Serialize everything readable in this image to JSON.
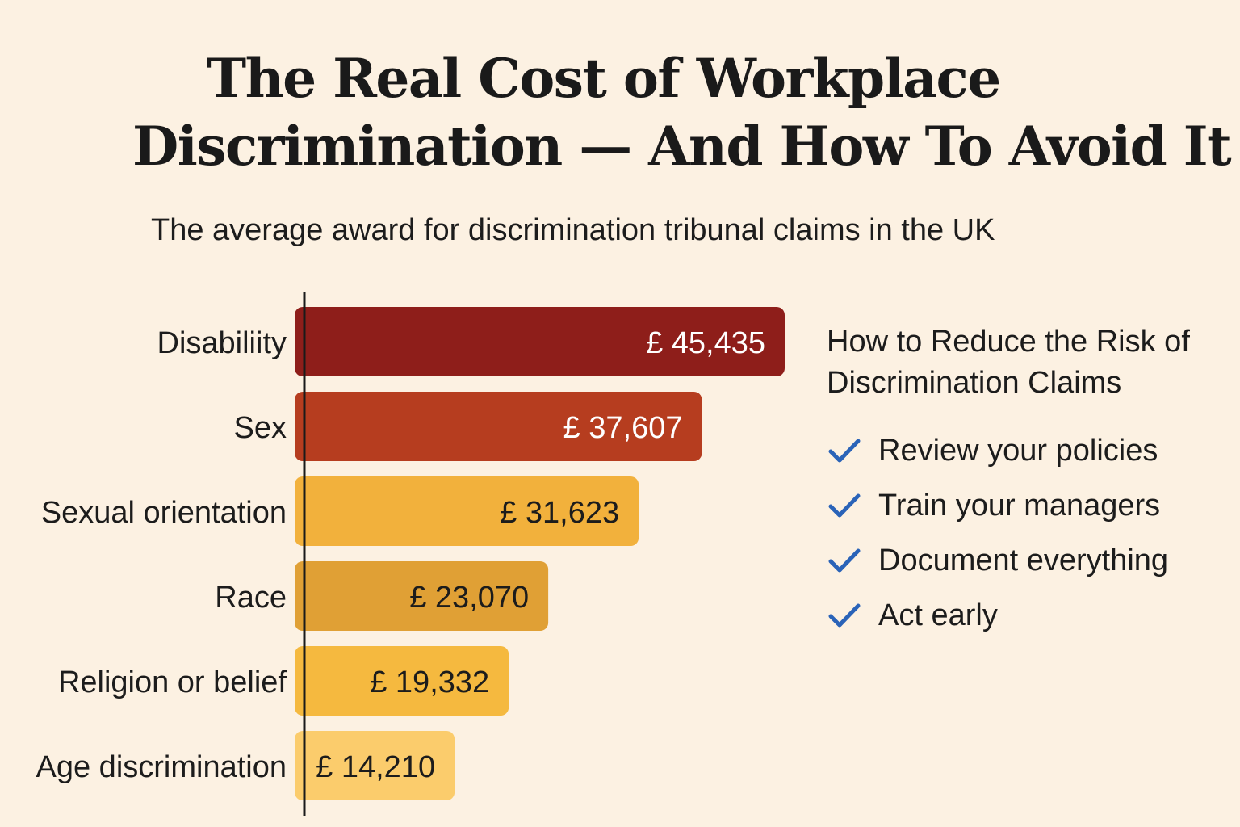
{
  "title": {
    "line1": "The Real Cost of Workplace",
    "line2": "Discrimination — And How To Avoid It"
  },
  "subtitle": "The average award for discrimination tribunal claims in the UK",
  "chart_data": {
    "type": "bar",
    "orientation": "horizontal",
    "categories": [
      "Disabiliity",
      "Sex",
      "Sexual orientation",
      "Race",
      "Religion or belief",
      "Age discrimination"
    ],
    "values": [
      45435,
      37607,
      31623,
      23070,
      19332,
      14210
    ],
    "value_labels": [
      "£ 45,435",
      "£ 37,607",
      "£ 31,623",
      "£ 23,070",
      "£ 19,332",
      "£ 14,210"
    ],
    "bar_colors": [
      "#8e1e1a",
      "#b63d1f",
      "#f2b13c",
      "#e0a035",
      "#f5b93f",
      "#fbcc6c"
    ],
    "label_colors": [
      "#ffffff",
      "#ffffff",
      "#1c1c1c",
      "#1c1c1c",
      "#1c1c1c",
      "#1c1c1c"
    ],
    "title": "",
    "xlabel": "",
    "ylabel": "",
    "grid": false
  },
  "tips": {
    "heading": "How to Reduce the Risk of Discrimination Claims",
    "check_color": "#2a63b8",
    "icon": "checkmark-icon",
    "items": [
      "Review your policies",
      "Train your managers",
      "Document everything",
      "Act early"
    ]
  }
}
